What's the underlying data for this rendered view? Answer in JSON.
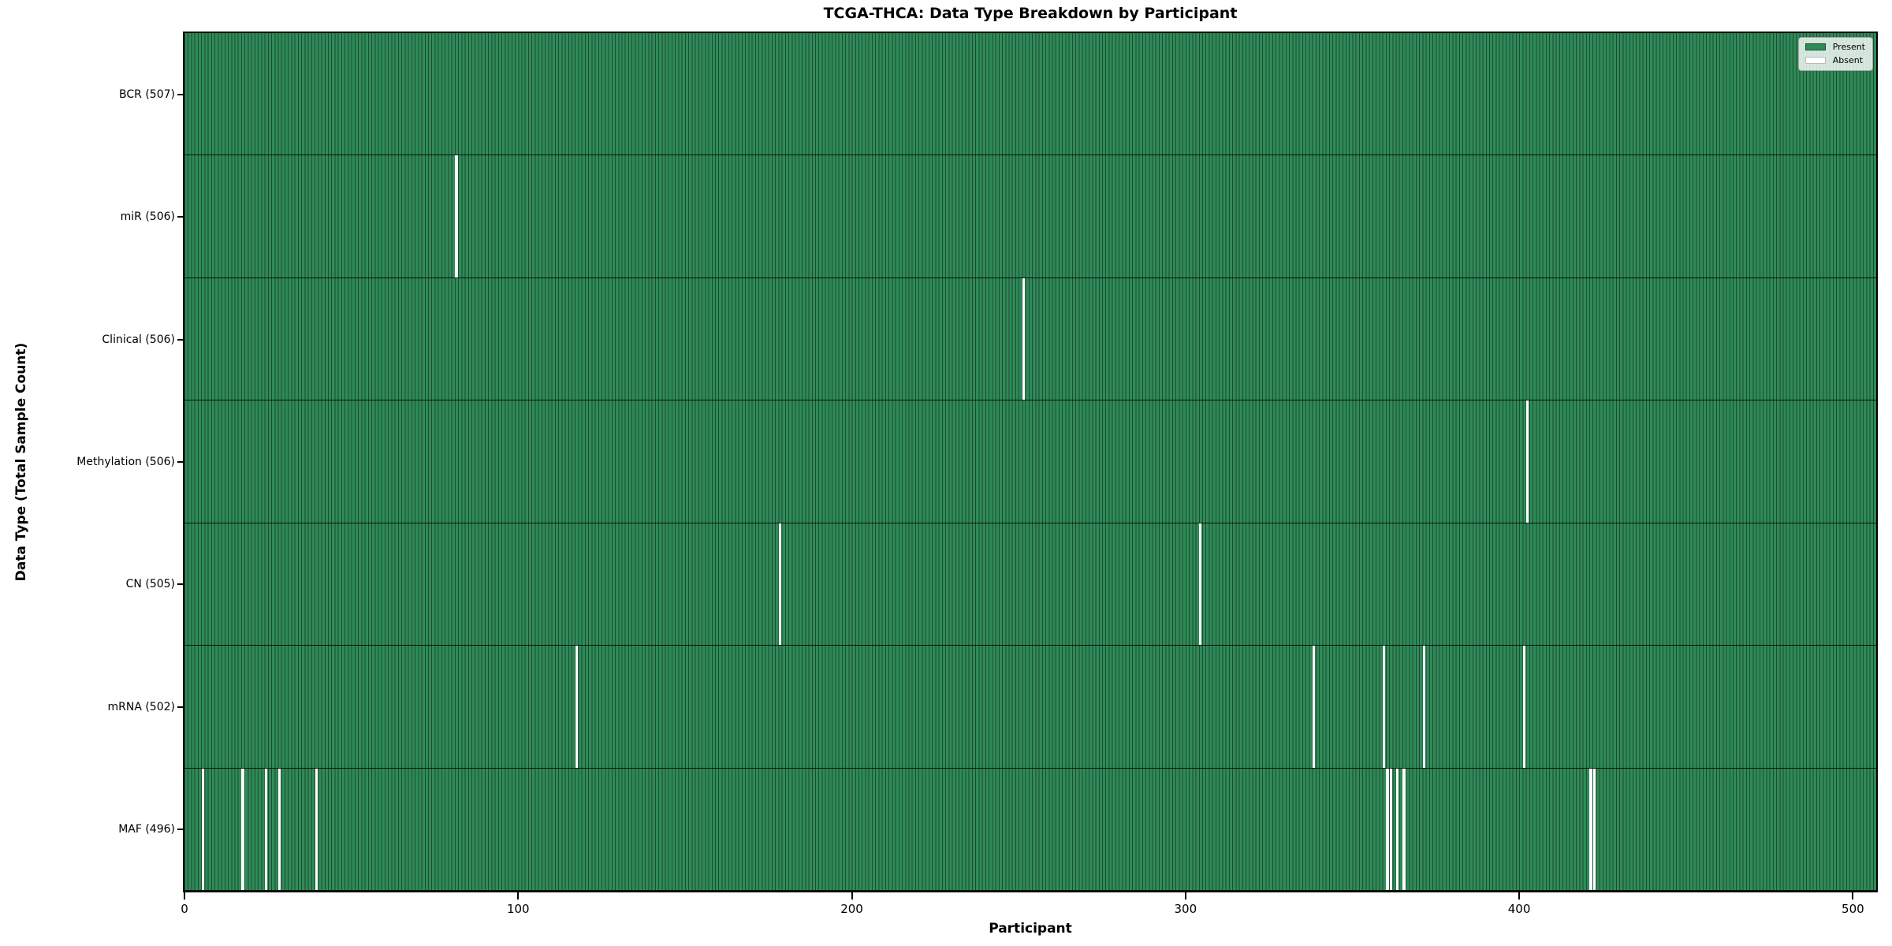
{
  "chart_data": {
    "type": "heatmap",
    "title": "TCGA-THCA: Data Type Breakdown by Participant",
    "xlabel": "Participant",
    "ylabel": "Data Type (Total Sample Count)",
    "x_ticks": [
      0,
      100,
      200,
      300,
      400,
      500
    ],
    "x_range": [
      0,
      507
    ],
    "n_participants": 507,
    "grid": false,
    "legend_position": "upper right",
    "legend": [
      {
        "label": "Present",
        "color": "#2e8b57"
      },
      {
        "label": "Absent",
        "color": "#ffffff"
      }
    ],
    "rows": [
      {
        "name": "BCR",
        "label": "BCR (507)",
        "present_count": 507,
        "absent_participants": []
      },
      {
        "name": "miR",
        "label": "miR (506)",
        "present_count": 506,
        "absent_participants": [
          81
        ]
      },
      {
        "name": "Clinical",
        "label": "Clinical (506)",
        "present_count": 506,
        "absent_participants": [
          251
        ]
      },
      {
        "name": "Methylation",
        "label": "Methylation (506)",
        "present_count": 506,
        "absent_participants": [
          402
        ]
      },
      {
        "name": "CN",
        "label": "CN (505)",
        "present_count": 505,
        "absent_participants": [
          178,
          304
        ]
      },
      {
        "name": "mRNA",
        "label": "mRNA (502)",
        "present_count": 502,
        "absent_participants": [
          117,
          338,
          359,
          371,
          401
        ]
      },
      {
        "name": "MAF",
        "label": "MAF (496)",
        "present_count": 496,
        "absent_participants": [
          5,
          17,
          24,
          28,
          39,
          360,
          361,
          363,
          365,
          421,
          422
        ]
      }
    ],
    "colors": {
      "present": "#2e8b57",
      "absent": "#ffffff",
      "bar_edge": "#1f4a33",
      "row_divider": "#000000",
      "spine": "#000000"
    }
  }
}
